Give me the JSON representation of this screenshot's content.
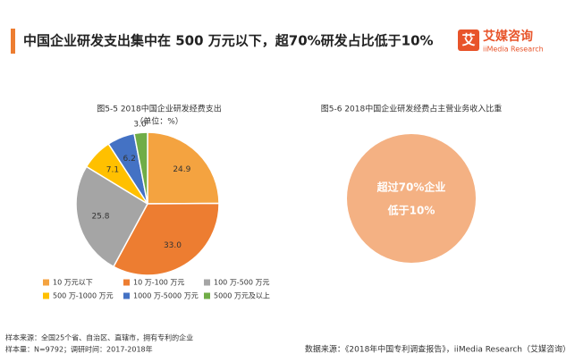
{
  "header": {
    "title": "中国企业研发支出集中在 500 万元以下，超70%研发占比低于10%",
    "logo": {
      "mark": "艾",
      "name": "艾媒咨询",
      "sub": "iiMedia Research"
    }
  },
  "chart_data": {
    "type": "pie",
    "title": "图5-5 2018中国企业研发经费支出",
    "subtitle": "（单位：%）",
    "categories": [
      "10 万元以下",
      "10 万-100 万元",
      "100 万-500 万元",
      "500 万-1000 万元",
      "1000 万-5000 万元",
      "5000 万元及以上"
    ],
    "values": [
      24.9,
      33,
      25.8,
      7.1,
      6.2,
      3
    ],
    "value_labels": [
      "24.9",
      "33.0",
      "25.8",
      "7.1",
      "6.2",
      "3.0"
    ],
    "colors": [
      "#f4a340",
      "#ed7d31",
      "#a5a5a5",
      "#ffc000",
      "#4472c4",
      "#70ad47"
    ],
    "legend": "bottom"
  },
  "figure2": {
    "title": "图5-6 2018中国企业研发经费占主营业务收入比重",
    "lines": [
      "超过70%企业",
      "低于10%"
    ]
  },
  "footer": {
    "notes": [
      "样本来源：全国25个省、自治区、直辖市，拥有专利的企业",
      "样本量：N=9792；调研时间：2017-2018年"
    ],
    "source": "数据来源：《2018年中国专利调查报告》，iiMedia Research（艾媒咨询）"
  }
}
